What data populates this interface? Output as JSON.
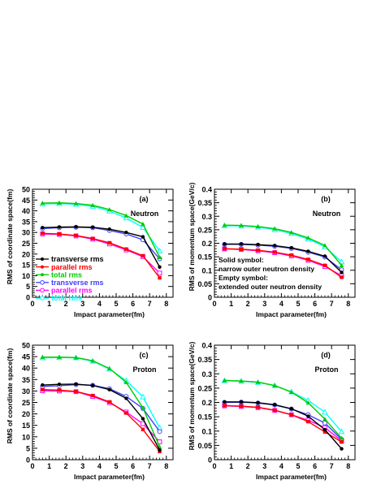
{
  "chart_data": [
    {
      "type": "line",
      "panel_label": "(a)",
      "annotation": "Neutron",
      "xlabel": "Impact parameter(fm)",
      "ylabel": "RMS of coordinate space(fm)",
      "xlim": [
        0,
        8.4
      ],
      "ylim": [
        0,
        50
      ],
      "xticks": [
        0,
        1,
        2,
        3,
        4,
        5,
        6,
        7,
        8
      ],
      "yticks": [
        0,
        5,
        10,
        15,
        20,
        25,
        30,
        35,
        40,
        45,
        50
      ],
      "x": [
        0.6,
        1.6,
        2.6,
        3.6,
        4.6,
        5.6,
        6.6,
        7.6
      ],
      "series": [
        {
          "name": "transverse rms",
          "color": "#000000",
          "marker": "filled",
          "values": [
            32.2,
            32.5,
            32.6,
            32.4,
            31.5,
            30.0,
            28.0,
            14.0
          ]
        },
        {
          "name": "parallel rms",
          "color": "#ff0000",
          "marker": "filled",
          "values": [
            29.6,
            29.3,
            28.6,
            27.2,
            25.2,
            22.3,
            19.2,
            9.0
          ]
        },
        {
          "name": "total rms",
          "color": "#00cc00",
          "marker": "filled",
          "values": [
            43.6,
            43.7,
            43.4,
            42.6,
            40.6,
            37.8,
            33.9,
            18.5
          ]
        },
        {
          "name": "transverse rms",
          "color": "#4040ff",
          "marker": "open",
          "values": [
            31.8,
            32.2,
            32.4,
            32.2,
            30.9,
            29.3,
            26.6,
            17.8
          ]
        },
        {
          "name": "parallel rms",
          "color": "#ff00ff",
          "marker": "open",
          "values": [
            29.3,
            29.1,
            28.4,
            26.9,
            24.7,
            21.9,
            18.8,
            11.2
          ]
        },
        {
          "name": "total rms",
          "color": "#00ffff",
          "marker": "open",
          "values": [
            43.2,
            43.4,
            43.0,
            42.1,
            39.9,
            36.7,
            32.3,
            21.4
          ]
        }
      ],
      "legend": [
        "transverse rms",
        "parallel rms",
        "total rms",
        "transverse rms",
        "parallel rms",
        "total rms"
      ]
    },
    {
      "type": "line",
      "panel_label": "(b)",
      "annotation": "Neutron",
      "xlabel": "Impact parameter(fm)",
      "ylabel": "RMS of momentum space(GeV/c)",
      "xlim": [
        0,
        8.4
      ],
      "ylim": [
        0,
        0.4
      ],
      "xticks": [
        0,
        1,
        2,
        3,
        4,
        5,
        6,
        7,
        8
      ],
      "yticks": [
        "0",
        "0.05",
        "0.1",
        "0.15",
        "0.2",
        "0.25",
        "0.3",
        "0.35",
        "0.4"
      ],
      "x": [
        0.6,
        1.6,
        2.6,
        3.6,
        4.6,
        5.6,
        6.6,
        7.6
      ],
      "series": [
        {
          "color": "#000000",
          "marker": "filled",
          "values": [
            0.197,
            0.197,
            0.195,
            0.191,
            0.183,
            0.17,
            0.152,
            0.092
          ]
        },
        {
          "color": "#ff0000",
          "marker": "filled",
          "values": [
            0.18,
            0.178,
            0.174,
            0.167,
            0.156,
            0.14,
            0.118,
            0.074
          ]
        },
        {
          "color": "#00cc00",
          "marker": "filled",
          "values": [
            0.267,
            0.266,
            0.262,
            0.254,
            0.24,
            0.22,
            0.192,
            0.118
          ]
        },
        {
          "color": "#4040ff",
          "marker": "open",
          "values": [
            0.196,
            0.196,
            0.193,
            0.189,
            0.181,
            0.167,
            0.149,
            0.102
          ]
        },
        {
          "color": "#ff00ff",
          "marker": "open",
          "values": [
            0.179,
            0.177,
            0.172,
            0.165,
            0.153,
            0.137,
            0.114,
            0.08
          ]
        },
        {
          "color": "#00ffff",
          "marker": "open",
          "values": [
            0.265,
            0.264,
            0.26,
            0.251,
            0.236,
            0.216,
            0.187,
            0.131
          ]
        }
      ],
      "notes": [
        "Solid symbol:",
        "narrow outer neutron density",
        "Empty symbol:",
        "extended outer neutron density"
      ]
    },
    {
      "type": "line",
      "panel_label": "(c)",
      "annotation": "Proton",
      "xlabel": "Impact parameter(fm)",
      "ylabel": "RMS of coordinate space(fm)",
      "xlim": [
        0,
        8.4
      ],
      "ylim": [
        0,
        50
      ],
      "xticks": [
        0,
        1,
        2,
        3,
        4,
        5,
        6,
        7,
        8
      ],
      "yticks": [
        0,
        5,
        10,
        15,
        20,
        25,
        30,
        35,
        40,
        45,
        50
      ],
      "x": [
        0.6,
        1.6,
        2.6,
        3.6,
        4.6,
        5.6,
        6.6,
        7.6
      ],
      "series": [
        {
          "color": "#000000",
          "marker": "filled",
          "values": [
            32.6,
            32.9,
            33.0,
            32.4,
            30.6,
            26.8,
            17.9,
            4.2
          ]
        },
        {
          "color": "#ff0000",
          "marker": "filled",
          "values": [
            30.6,
            30.4,
            29.8,
            28.0,
            25.2,
            20.4,
            13.2,
            3.6
          ]
        },
        {
          "color": "#00cc00",
          "marker": "filled",
          "values": [
            44.8,
            44.8,
            44.6,
            43.2,
            39.8,
            33.8,
            22.6,
            5.6
          ]
        },
        {
          "color": "#4040ff",
          "marker": "open",
          "values": [
            32.0,
            32.3,
            32.8,
            32.5,
            31.0,
            27.6,
            22.4,
            12.3
          ]
        },
        {
          "color": "#ff00ff",
          "marker": "open",
          "values": [
            30.1,
            30.0,
            29.7,
            27.6,
            24.9,
            20.8,
            15.7,
            7.8
          ]
        },
        {
          "color": "#00ffff",
          "marker": "open",
          "values": [
            44.5,
            44.6,
            44.5,
            43.0,
            39.6,
            34.5,
            27.4,
            13.9
          ]
        }
      ]
    },
    {
      "type": "line",
      "panel_label": "(d)",
      "annotation": "Proton",
      "xlabel": "Impact parameter(fm)",
      "ylabel": "RMS of momentum space(GeV/c)",
      "xlim": [
        0,
        8.4
      ],
      "ylim": [
        0,
        0.4
      ],
      "xticks": [
        0,
        1,
        2,
        3,
        4,
        5,
        6,
        7,
        8
      ],
      "yticks": [
        "0",
        "0.05",
        "0.1",
        "0.15",
        "0.2",
        "0.25",
        "0.3",
        "0.35",
        "0.4"
      ],
      "x": [
        0.6,
        1.6,
        2.6,
        3.6,
        4.6,
        5.6,
        6.6,
        7.6
      ],
      "series": [
        {
          "color": "#000000",
          "marker": "filled",
          "values": [
            0.202,
            0.202,
            0.199,
            0.192,
            0.178,
            0.152,
            0.105,
            0.038
          ]
        },
        {
          "color": "#ff0000",
          "marker": "filled",
          "values": [
            0.189,
            0.187,
            0.183,
            0.173,
            0.157,
            0.133,
            0.097,
            0.062
          ]
        },
        {
          "color": "#00cc00",
          "marker": "filled",
          "values": [
            0.277,
            0.275,
            0.271,
            0.259,
            0.236,
            0.199,
            0.142,
            0.075
          ]
        },
        {
          "color": "#4040ff",
          "marker": "open",
          "values": [
            0.2,
            0.201,
            0.198,
            0.191,
            0.177,
            0.157,
            0.128,
            0.071
          ]
        },
        {
          "color": "#ff00ff",
          "marker": "open",
          "values": [
            0.188,
            0.186,
            0.182,
            0.172,
            0.157,
            0.138,
            0.112,
            0.066
          ]
        },
        {
          "color": "#00ffff",
          "marker": "open",
          "values": [
            0.276,
            0.274,
            0.27,
            0.259,
            0.237,
            0.207,
            0.166,
            0.098
          ]
        }
      ]
    }
  ]
}
